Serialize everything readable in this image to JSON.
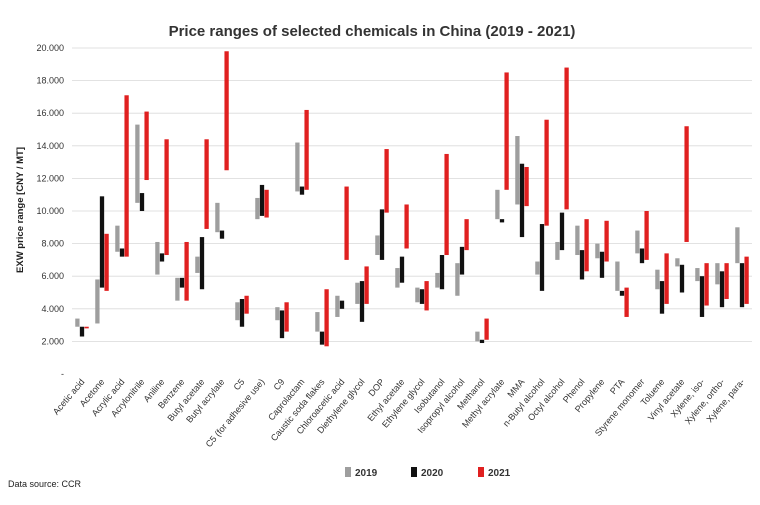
{
  "chart_data": {
    "type": "floating-bar",
    "title": "Price ranges of selected chemicals in China (2019 - 2021)",
    "xlabel": "",
    "ylabel": "EXW price range [CNY / MT]",
    "ylim": [
      0,
      20000
    ],
    "yticks": [
      {
        "value": 0,
        "label": "-"
      },
      {
        "value": 2000,
        "label": "2.000"
      },
      {
        "value": 4000,
        "label": "4.000"
      },
      {
        "value": 6000,
        "label": "6.000"
      },
      {
        "value": 8000,
        "label": "8.000"
      },
      {
        "value": 10000,
        "label": "10.000"
      },
      {
        "value": 12000,
        "label": "12.000"
      },
      {
        "value": 14000,
        "label": "14.000"
      },
      {
        "value": 16000,
        "label": "16.000"
      },
      {
        "value": 18000,
        "label": "18.000"
      },
      {
        "value": 20000,
        "label": "20.000"
      }
    ],
    "grid": true,
    "legend_position": "bottom",
    "source": "Data source:  CCR",
    "series": [
      {
        "name": "2019",
        "color": "#9e9e9e"
      },
      {
        "name": "2020",
        "color": "#111111"
      },
      {
        "name": "2021",
        "color": "#e02020"
      }
    ],
    "categories": [
      {
        "name": "Acetic acid",
        "ranges": [
          [
            2900,
            3400
          ],
          [
            2300,
            2900
          ],
          [
            2800,
            2900
          ]
        ]
      },
      {
        "name": "Acetone",
        "ranges": [
          [
            3100,
            5800
          ],
          [
            5300,
            10900
          ],
          [
            5100,
            8600
          ]
        ]
      },
      {
        "name": "Acrylic acid",
        "ranges": [
          [
            7500,
            9100
          ],
          [
            7200,
            7700
          ],
          [
            7200,
            17100
          ]
        ]
      },
      {
        "name": "Acrylonitrile",
        "ranges": [
          [
            10500,
            15300
          ],
          [
            10000,
            11100
          ],
          [
            11900,
            16100
          ]
        ]
      },
      {
        "name": "Aniline",
        "ranges": [
          [
            6100,
            8100
          ],
          [
            6900,
            7400
          ],
          [
            7300,
            14400
          ]
        ]
      },
      {
        "name": "Benzene",
        "ranges": [
          [
            4500,
            5900
          ],
          [
            5300,
            5900
          ],
          [
            4500,
            8100
          ]
        ]
      },
      {
        "name": "Butyl acetate",
        "ranges": [
          [
            6200,
            7200
          ],
          [
            5200,
            8400
          ],
          [
            8900,
            14400
          ]
        ]
      },
      {
        "name": "Butyl acrylate",
        "ranges": [
          [
            8700,
            10500
          ],
          [
            8300,
            8800
          ],
          [
            12500,
            19800
          ]
        ]
      },
      {
        "name": "C5",
        "ranges": [
          [
            3300,
            4400
          ],
          [
            2900,
            4600
          ],
          [
            3700,
            4800
          ]
        ]
      },
      {
        "name": "C5 (for adhesive use)",
        "ranges": [
          [
            9500,
            10800
          ],
          [
            9700,
            11600
          ],
          [
            9600,
            11300
          ]
        ]
      },
      {
        "name": "C9",
        "ranges": [
          [
            3300,
            4100
          ],
          [
            2200,
            3900
          ],
          [
            2600,
            4400
          ]
        ]
      },
      {
        "name": "Caprolactam",
        "ranges": [
          [
            11200,
            14200
          ],
          [
            11000,
            11500
          ],
          [
            11300,
            16200
          ]
        ]
      },
      {
        "name": "Caustic soda flakes",
        "ranges": [
          [
            2600,
            3800
          ],
          [
            1800,
            2600
          ],
          [
            1700,
            5200
          ]
        ]
      },
      {
        "name": "Chloroacetic acid",
        "ranges": [
          [
            3500,
            4800
          ],
          [
            4000,
            4500
          ],
          [
            7000,
            11500
          ]
        ]
      },
      {
        "name": "Diethylene glycol",
        "ranges": [
          [
            4300,
            5600
          ],
          [
            3200,
            5700
          ],
          [
            4300,
            6600
          ]
        ]
      },
      {
        "name": "DOP",
        "ranges": [
          [
            7300,
            8500
          ],
          [
            7000,
            10100
          ],
          [
            9900,
            13800
          ]
        ]
      },
      {
        "name": "Ethyl acetate",
        "ranges": [
          [
            5300,
            6500
          ],
          [
            5600,
            7200
          ],
          [
            7700,
            10400
          ]
        ]
      },
      {
        "name": "Ethylene glycol",
        "ranges": [
          [
            4400,
            5300
          ],
          [
            4300,
            5200
          ],
          [
            3900,
            5700
          ]
        ]
      },
      {
        "name": "Isobutanol",
        "ranges": [
          [
            5300,
            6200
          ],
          [
            5200,
            7300
          ],
          [
            7300,
            13500
          ]
        ]
      },
      {
        "name": "Isopropyl alcohol",
        "ranges": [
          [
            4800,
            6800
          ],
          [
            6100,
            7800
          ],
          [
            7600,
            9500
          ]
        ]
      },
      {
        "name": "Methanol",
        "ranges": [
          [
            2000,
            2600
          ],
          [
            1900,
            2100
          ],
          [
            2100,
            3400
          ]
        ]
      },
      {
        "name": "Methyl acrylate",
        "ranges": [
          [
            9500,
            11300
          ],
          [
            9300,
            9500
          ],
          [
            11300,
            18500
          ]
        ]
      },
      {
        "name": "MMA",
        "ranges": [
          [
            10400,
            14600
          ],
          [
            8400,
            12900
          ],
          [
            10300,
            12700
          ]
        ]
      },
      {
        "name": "n-Butyl alcohol",
        "ranges": [
          [
            6100,
            6900
          ],
          [
            5100,
            9200
          ],
          [
            9100,
            15600
          ]
        ]
      },
      {
        "name": "Octyl alcohol",
        "ranges": [
          [
            7000,
            8100
          ],
          [
            7600,
            9900
          ],
          [
            10100,
            18800
          ]
        ]
      },
      {
        "name": "Phenol",
        "ranges": [
          [
            7300,
            9100
          ],
          [
            5800,
            7600
          ],
          [
            6300,
            9500
          ]
        ]
      },
      {
        "name": "Propylene",
        "ranges": [
          [
            7100,
            8000
          ],
          [
            5900,
            7500
          ],
          [
            6900,
            9400
          ]
        ]
      },
      {
        "name": "PTA",
        "ranges": [
          [
            5100,
            6900
          ],
          [
            4800,
            5100
          ],
          [
            3500,
            5300
          ]
        ]
      },
      {
        "name": "Styrene monomer",
        "ranges": [
          [
            7400,
            8800
          ],
          [
            6800,
            7700
          ],
          [
            7000,
            10000
          ]
        ]
      },
      {
        "name": "Toluene",
        "ranges": [
          [
            5200,
            6400
          ],
          [
            3700,
            5700
          ],
          [
            4300,
            7400
          ]
        ]
      },
      {
        "name": "Vinyl acetate",
        "ranges": [
          [
            6600,
            7100
          ],
          [
            5000,
            6700
          ],
          [
            8100,
            15200
          ]
        ]
      },
      {
        "name": "Xylene, iso-",
        "ranges": [
          [
            5700,
            6500
          ],
          [
            3500,
            6000
          ],
          [
            4200,
            6800
          ]
        ]
      },
      {
        "name": "Xylene, ortho-",
        "ranges": [
          [
            5500,
            6800
          ],
          [
            4100,
            6300
          ],
          [
            4600,
            6800
          ]
        ]
      },
      {
        "name": "Xylene, para-",
        "ranges": [
          [
            6800,
            9000
          ],
          [
            4100,
            6800
          ],
          [
            4300,
            7200
          ]
        ]
      }
    ]
  }
}
